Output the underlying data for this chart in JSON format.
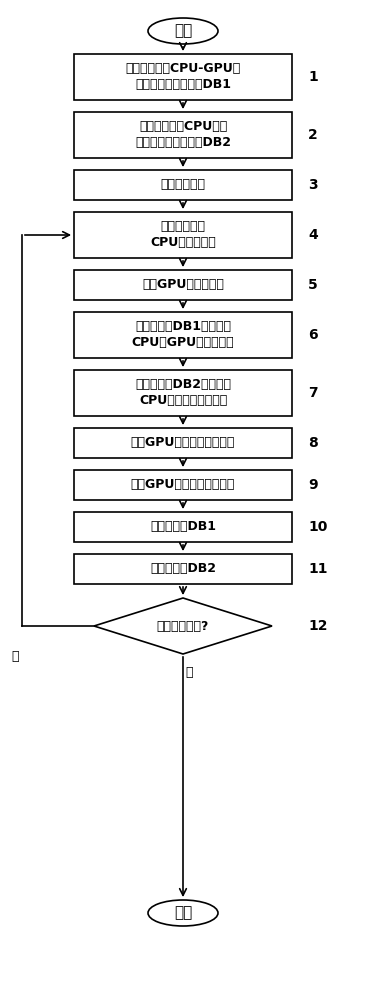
{
  "title_start": "开始",
  "title_end": "结束",
  "background_color": "#ffffff",
  "box_color": "#ffffff",
  "box_edge_color": "#000000",
  "arrow_color": "#000000",
  "text_color": "#000000",
  "boxes": [
    {
      "id": 1,
      "type": "rect",
      "label": "构建并初始化CPU-GPU间\n任务划分比例数据库DB1",
      "num": "1",
      "lines": 2
    },
    {
      "id": 2,
      "type": "rect",
      "label": "构建并初始化CPU核间\n任务划分比例数据库DB2",
      "num": "2",
      "lines": 2
    },
    {
      "id": 3,
      "type": "rect",
      "label": "启动应用程序",
      "num": "3",
      "lines": 1
    },
    {
      "id": 4,
      "type": "rect",
      "label": "执行应用程序\nCPU执行区代码",
      "num": "4",
      "lines": 2
    },
    {
      "id": 5,
      "type": "rect",
      "label": "进入GPU加速区入口",
      "num": "5",
      "lines": 1
    },
    {
      "id": 6,
      "type": "rect",
      "label": "根据数据库DB1的值进行\nCPU、GPU的任务划分",
      "num": "6",
      "lines": 2
    },
    {
      "id": 7,
      "type": "rect",
      "label": "根据数据库DB2的值进行\nCPU核之间的任务划分",
      "num": "7",
      "lines": 2
    },
    {
      "id": 8,
      "type": "rect",
      "label": "执行GPU加速区的并行任务",
      "num": "8",
      "lines": 1
    },
    {
      "id": 9,
      "type": "rect",
      "label": "同步GPU加速区的并行任务",
      "num": "9",
      "lines": 1
    },
    {
      "id": 10,
      "type": "rect",
      "label": "更新数据库DB1",
      "num": "10",
      "lines": 1
    },
    {
      "id": 11,
      "type": "rect",
      "label": "更新数据库DB2",
      "num": "11",
      "lines": 1
    },
    {
      "id": 12,
      "type": "diamond",
      "label": "程序是否结束?",
      "num": "12",
      "lines": 1
    }
  ],
  "yes_label": "是",
  "no_label": "否"
}
